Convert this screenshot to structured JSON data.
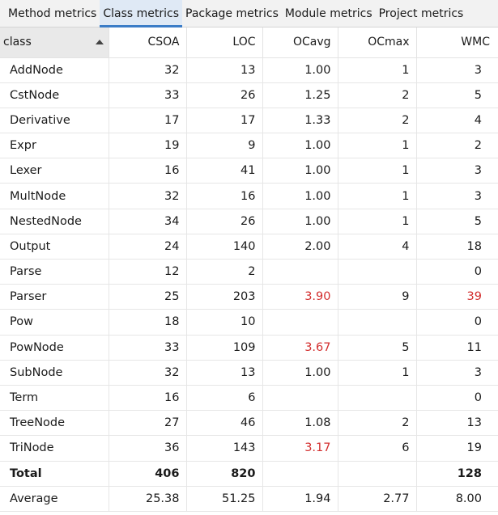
{
  "tabs": [
    {
      "label": "Method metrics",
      "active": false
    },
    {
      "label": "Class metrics",
      "active": true
    },
    {
      "label": "Package metrics",
      "active": false
    },
    {
      "label": "Module metrics",
      "active": false
    },
    {
      "label": "Project metrics",
      "active": false
    }
  ],
  "columns": [
    "class",
    "CSOA",
    "LOC",
    "OCavg",
    "OCmax",
    "WMC"
  ],
  "sort": {
    "column": "class",
    "direction": "ascending",
    "icon": "sort-ascending-icon"
  },
  "colors": {
    "warning": "#d32f2f",
    "active_tab_bg": "#dfe9f5",
    "active_tab_accent": "#3a7cc7"
  },
  "rows": [
    {
      "name": "AddNode",
      "csoa": "32",
      "loc": "13",
      "ocavg": "1.00",
      "ocmax": "1",
      "wmc": "3",
      "ocavg_warn": false,
      "wmc_warn": false
    },
    {
      "name": "CstNode",
      "csoa": "33",
      "loc": "26",
      "ocavg": "1.25",
      "ocmax": "2",
      "wmc": "5",
      "ocavg_warn": false,
      "wmc_warn": false
    },
    {
      "name": "Derivative",
      "csoa": "17",
      "loc": "17",
      "ocavg": "1.33",
      "ocmax": "2",
      "wmc": "4",
      "ocavg_warn": false,
      "wmc_warn": false
    },
    {
      "name": "Expr",
      "csoa": "19",
      "loc": "9",
      "ocavg": "1.00",
      "ocmax": "1",
      "wmc": "2",
      "ocavg_warn": false,
      "wmc_warn": false
    },
    {
      "name": "Lexer",
      "csoa": "16",
      "loc": "41",
      "ocavg": "1.00",
      "ocmax": "1",
      "wmc": "3",
      "ocavg_warn": false,
      "wmc_warn": false
    },
    {
      "name": "MultNode",
      "csoa": "32",
      "loc": "16",
      "ocavg": "1.00",
      "ocmax": "1",
      "wmc": "3",
      "ocavg_warn": false,
      "wmc_warn": false
    },
    {
      "name": "NestedNode",
      "csoa": "34",
      "loc": "26",
      "ocavg": "1.00",
      "ocmax": "1",
      "wmc": "5",
      "ocavg_warn": false,
      "wmc_warn": false
    },
    {
      "name": "Output",
      "csoa": "24",
      "loc": "140",
      "ocavg": "2.00",
      "ocmax": "4",
      "wmc": "18",
      "ocavg_warn": false,
      "wmc_warn": false
    },
    {
      "name": "Parse",
      "csoa": "12",
      "loc": "2",
      "ocavg": "",
      "ocmax": "",
      "wmc": "0",
      "ocavg_warn": false,
      "wmc_warn": false
    },
    {
      "name": "Parser",
      "csoa": "25",
      "loc": "203",
      "ocavg": "3.90",
      "ocmax": "9",
      "wmc": "39",
      "ocavg_warn": true,
      "wmc_warn": true
    },
    {
      "name": "Pow",
      "csoa": "18",
      "loc": "10",
      "ocavg": "",
      "ocmax": "",
      "wmc": "0",
      "ocavg_warn": false,
      "wmc_warn": false
    },
    {
      "name": "PowNode",
      "csoa": "33",
      "loc": "109",
      "ocavg": "3.67",
      "ocmax": "5",
      "wmc": "11",
      "ocavg_warn": true,
      "wmc_warn": false
    },
    {
      "name": "SubNode",
      "csoa": "32",
      "loc": "13",
      "ocavg": "1.00",
      "ocmax": "1",
      "wmc": "3",
      "ocavg_warn": false,
      "wmc_warn": false
    },
    {
      "name": "Term",
      "csoa": "16",
      "loc": "6",
      "ocavg": "",
      "ocmax": "",
      "wmc": "0",
      "ocavg_warn": false,
      "wmc_warn": false
    },
    {
      "name": "TreeNode",
      "csoa": "27",
      "loc": "46",
      "ocavg": "1.08",
      "ocmax": "2",
      "wmc": "13",
      "ocavg_warn": false,
      "wmc_warn": false
    },
    {
      "name": "TriNode",
      "csoa": "36",
      "loc": "143",
      "ocavg": "3.17",
      "ocmax": "6",
      "wmc": "19",
      "ocavg_warn": true,
      "wmc_warn": false
    }
  ],
  "total": {
    "name": "Total",
    "csoa": "406",
    "loc": "820",
    "ocavg": "",
    "ocmax": "",
    "wmc": "128"
  },
  "average": {
    "name": "Average",
    "csoa": "25.38",
    "loc": "51.25",
    "ocavg": "1.94",
    "ocmax": "2.77",
    "wmc": "8.00"
  }
}
